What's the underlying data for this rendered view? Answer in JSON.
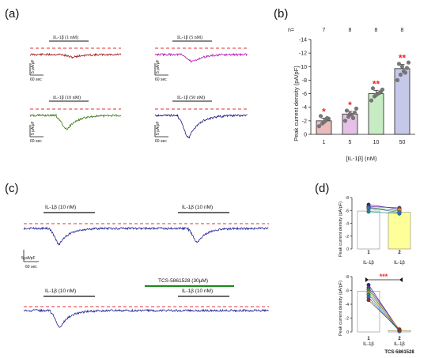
{
  "panels": {
    "a": {
      "label": "(a)"
    },
    "b": {
      "label": "(b)"
    },
    "c": {
      "label": "(c)"
    },
    "d": {
      "label": "(d)"
    }
  },
  "panel_a": {
    "traces": [
      {
        "label": "IL-1β (1 nM)",
        "color": "#a01818",
        "depth": 0.12
      },
      {
        "label": "IL-1β (5 nM)",
        "color": "#b21ab2",
        "depth": 0.33
      },
      {
        "label": "IL-1β (10 nM)",
        "color": "#3a7a12",
        "depth": 0.62
      },
      {
        "label": "IL-1β (50 nM)",
        "color": "#161680",
        "depth": 1.0
      }
    ],
    "scale_y": "5 pA/pF",
    "scale_x": "60 sec"
  },
  "panel_c": {
    "trace1_labels": [
      "IL-1β (10 nM)",
      "IL-1β (10 nM)"
    ],
    "trace2_labels": [
      "IL-1β (10 nM)",
      "IL-1β (10 nM)"
    ],
    "tcs_label": "TCS-5861528 (30μM)",
    "scale_y": "5 pA/pF",
    "scale_x": "60 sec",
    "trace_color": "#23239a",
    "tcs_color": "#1e8a1e",
    "dash_color": "#e03030"
  },
  "panel_d": {
    "ylabel": "Peak current density (pA/pF)",
    "yticks": [
      "-8",
      "-6",
      "-4",
      "-2",
      "0"
    ],
    "top": {
      "x_labels": [
        "1",
        "2"
      ],
      "x_sublabels": [
        "IL-1β",
        "IL-1β"
      ],
      "means": [
        -5.9,
        -5.7
      ],
      "pairs": [
        [
          -6.9,
          -6.2
        ],
        [
          -6.6,
          -6.4
        ],
        [
          -6.5,
          -5.9
        ],
        [
          -6.2,
          -6.1
        ],
        [
          -5.8,
          -5.5
        ],
        [
          -6.4,
          -5.7
        ]
      ],
      "bar_colors": [
        "#ffffff",
        "#ffff99"
      ]
    },
    "bottom": {
      "x_labels": [
        "1",
        "2"
      ],
      "x_sublabels": [
        "IL-1β",
        "IL-1β"
      ],
      "x_extra": "TCS-5861528",
      "significance": "***",
      "means": [
        -5.9,
        -0.2
      ],
      "pairs": [
        [
          -6.8,
          -0.2
        ],
        [
          -6.4,
          -0.3
        ],
        [
          -6.1,
          -0.1
        ],
        [
          -5.7,
          -0.4
        ],
        [
          -5.4,
          -0.2
        ],
        [
          -5.0,
          -0.1
        ],
        [
          -4.6,
          -0.3
        ]
      ],
      "bar_colors": [
        "#ffffff",
        "#ffff99"
      ]
    },
    "dot_colors": [
      "#2b2b9b",
      "#7a2a9a",
      "#2a9a3a",
      "#e0901a",
      "#1a8a8a",
      "#3a6ad0",
      "#8a3a1a"
    ]
  },
  "chart_data": {
    "type": "bar",
    "title": "",
    "n_label": "n=",
    "n_values": [
      "7",
      "8",
      "8",
      "8"
    ],
    "categories": [
      "1",
      "5",
      "10",
      "50"
    ],
    "values": [
      -2.0,
      -3.0,
      -6.0,
      -9.7
    ],
    "sem": [
      0.4,
      0.4,
      0.5,
      0.6
    ],
    "bar_colors": [
      "#e8bcbc",
      "#e5c2e5",
      "#c7ebc3",
      "#c6c8ea"
    ],
    "significance": [
      "*",
      "*",
      "**",
      "**"
    ],
    "points": [
      [
        -1.2,
        -1.6,
        -2.0,
        -2.3,
        -2.7,
        -1.8,
        -2.4
      ],
      [
        -2.0,
        -2.6,
        -2.9,
        -3.2,
        -3.5,
        -3.0,
        -2.4,
        -3.8
      ],
      [
        -5.0,
        -5.6,
        -6.0,
        -6.3,
        -6.8,
        -5.8,
        -6.1,
        -6.6
      ],
      [
        -8.0,
        -8.8,
        -9.3,
        -9.8,
        -10.4,
        -10.0,
        -9.1,
        -10.6
      ]
    ],
    "xlabel": "[IL-1β]  (nM)",
    "ylabel": "Peak current density (pA/pF)",
    "yticks": [
      "-14",
      "-12",
      "-10",
      "-8",
      "-6",
      "-4",
      "-2",
      "0"
    ],
    "ylim": [
      -14,
      0
    ],
    "grid": false
  }
}
